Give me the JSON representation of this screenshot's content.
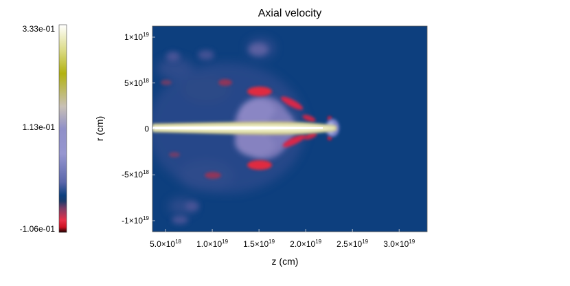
{
  "chart_data": {
    "type": "heatmap",
    "title": "Axial velocity",
    "xlabel": "z (cm)",
    "ylabel": "r (cm)",
    "xlim": [
      3.6e+18,
      3.3e+19
    ],
    "ylim": [
      -1.12e+19,
      1.12e+19
    ],
    "x_ticks": [
      {
        "value": 5e+18,
        "mantissa": "5.0",
        "exp": "18"
      },
      {
        "value": 1e+19,
        "mantissa": "1.0",
        "exp": "19"
      },
      {
        "value": 1.5e+19,
        "mantissa": "1.5",
        "exp": "19"
      },
      {
        "value": 2e+19,
        "mantissa": "2.0",
        "exp": "19"
      },
      {
        "value": 2.5e+19,
        "mantissa": "2.5",
        "exp": "19"
      },
      {
        "value": 3e+19,
        "mantissa": "3.0",
        "exp": "19"
      }
    ],
    "y_ticks": [
      {
        "value": 1e+19,
        "mantissa": "1",
        "exp": "19"
      },
      {
        "value": 5e+18,
        "mantissa": "5",
        "exp": "18"
      },
      {
        "value": 0,
        "mantissa": "0",
        "exp": ""
      },
      {
        "value": -5e+18,
        "mantissa": "-5",
        "exp": "18"
      },
      {
        "value": -1e+19,
        "mantissa": "-1",
        "exp": "19"
      }
    ],
    "colorbar": {
      "min": -0.106,
      "max": 0.333,
      "labels": [
        {
          "value": 0.333,
          "text": "3.33e-01"
        },
        {
          "value": 0.113,
          "text": "1.13e-01"
        },
        {
          "value": -0.106,
          "text": "-1.06e-01"
        }
      ],
      "stops": [
        {
          "value": -0.106,
          "color": "#1a0000"
        },
        {
          "value": -0.095,
          "color": "#cc1020"
        },
        {
          "value": -0.08,
          "color": "#e83048"
        },
        {
          "value": -0.055,
          "color": "#7a3c66"
        },
        {
          "value": -0.04,
          "color": "#1c3a6a"
        },
        {
          "value": -0.028,
          "color": "#0d3f7e"
        },
        {
          "value": 0.0,
          "color": "#5a66aa"
        },
        {
          "value": 0.06,
          "color": "#9696d0"
        },
        {
          "value": 0.113,
          "color": "#9090c8"
        },
        {
          "value": 0.16,
          "color": "#c8c0b6"
        },
        {
          "value": 0.23,
          "color": "#b2b210"
        },
        {
          "value": 0.28,
          "color": "#dcdc88"
        },
        {
          "value": 0.333,
          "color": "#ffffff"
        }
      ]
    },
    "background_color": "#0d3f7e",
    "grid": false
  }
}
